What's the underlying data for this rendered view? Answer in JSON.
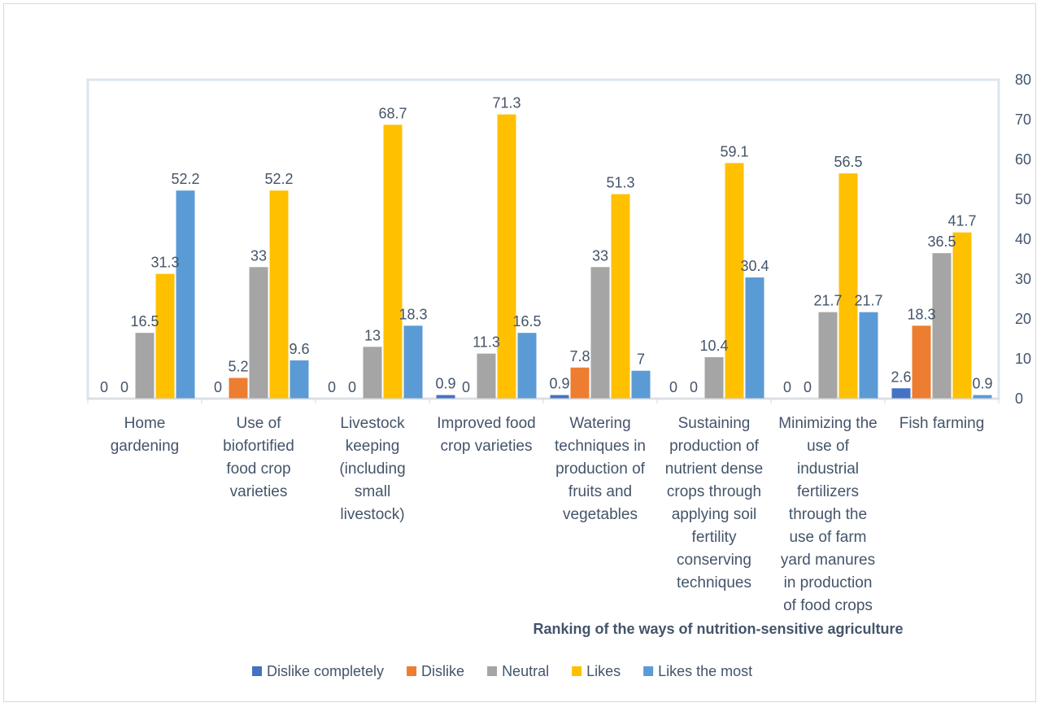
{
  "chart_data": {
    "type": "bar",
    "title": "",
    "xlabel": "Ranking of the ways of nutrition-sensitive agriculture",
    "ylabel": "",
    "ylim": [
      0,
      80
    ],
    "yticks": [
      0,
      10,
      20,
      30,
      40,
      50,
      60,
      70,
      80
    ],
    "y_axis_side": "right",
    "grid": false,
    "legend_position": "bottom",
    "categories": [
      "Home gardening",
      "Use of biofortified food crop varieties",
      "Livestock keeping (including small livestock)",
      "Improved food crop varieties",
      "Watering techniques in production of fruits and vegetables",
      "Sustaining production of nutrient dense crops through applying soil fertility conserving techniques",
      "Minimizing the use of industrial fertilizers through the use of farm yard manures in production of food crops",
      "Fish farming"
    ],
    "category_label_lines": [
      [
        "Home",
        "gardening"
      ],
      [
        "Use of",
        "biofortified",
        "food crop",
        "varieties"
      ],
      [
        "Livestock",
        "keeping",
        "(including",
        "small",
        "livestock)"
      ],
      [
        "Improved food",
        "crop varieties"
      ],
      [
        "Watering",
        "techniques in",
        "production of",
        "fruits and",
        "vegetables"
      ],
      [
        "Sustaining",
        "production of",
        "nutrient dense",
        "crops through",
        "applying soil",
        "fertility",
        "conserving",
        "techniques"
      ],
      [
        "Minimizing the",
        "use of",
        "industrial",
        "fertilizers",
        "through the",
        "use of farm",
        "yard manures",
        "in production",
        "of food crops"
      ],
      [
        "Fish farming"
      ]
    ],
    "series": [
      {
        "name": "Dislike completely",
        "color": "#4472c4",
        "values": [
          0,
          0,
          0,
          0.9,
          0.9,
          0,
          0,
          2.6
        ]
      },
      {
        "name": "Dislike",
        "color": "#ed7d31",
        "values": [
          0,
          5.2,
          0,
          0,
          7.8,
          0,
          0,
          18.3
        ]
      },
      {
        "name": "Neutral",
        "color": "#a5a5a5",
        "values": [
          16.5,
          33,
          13,
          11.3,
          33,
          10.4,
          21.7,
          36.5
        ]
      },
      {
        "name": "Likes",
        "color": "#ffc000",
        "values": [
          31.3,
          52.2,
          68.7,
          71.3,
          51.3,
          59.1,
          56.5,
          41.7
        ]
      },
      {
        "name": "Likes the most",
        "color": "#5b9bd5",
        "values": [
          52.2,
          9.6,
          18.3,
          16.5,
          7,
          30.4,
          21.7,
          0.9
        ]
      }
    ]
  }
}
